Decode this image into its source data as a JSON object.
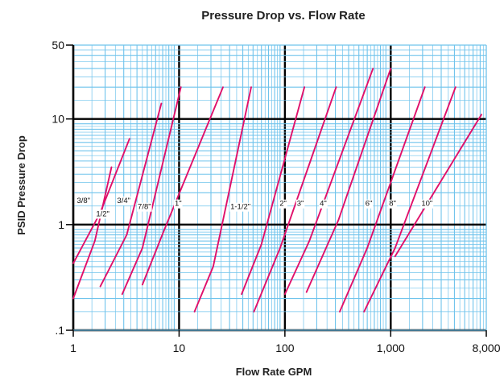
{
  "chart_data": {
    "type": "line",
    "title": "Pressure Drop vs. Flow Rate",
    "xlabel": "Flow Rate GPM",
    "ylabel": "PSID Pressure Drop",
    "x_scale": "log",
    "y_scale": "log",
    "xlim": [
      1,
      8000
    ],
    "ylim": [
      0.1,
      50
    ],
    "x_ticks": [
      {
        "value": 1,
        "label": "1"
      },
      {
        "value": 10,
        "label": "10"
      },
      {
        "value": 100,
        "label": "100"
      },
      {
        "value": 1000,
        "label": "1,000"
      },
      {
        "value": 8000,
        "label": "8,000"
      }
    ],
    "y_ticks": [
      {
        "value": 0.1,
        "label": ".1"
      },
      {
        "value": 1,
        "label": "1"
      },
      {
        "value": 10,
        "label": "10"
      },
      {
        "value": 50,
        "label": "50"
      }
    ],
    "grid": true,
    "colors": {
      "grid_minor": "#6fc3ec",
      "grid_major": "#000000",
      "series": "#e0106a"
    },
    "series": [
      {
        "name": "3/8\"",
        "x": [
          1,
          1.6,
          2.3
        ],
        "y": [
          0.2,
          0.7,
          3.5
        ],
        "label_at": [
          1.25,
          1.6
        ]
      },
      {
        "name": "1/2\"",
        "x": [
          1,
          1.8,
          3.4
        ],
        "y": [
          0.43,
          1.3,
          6.5
        ]
      },
      {
        "name": "3/4\"",
        "x": [
          1.8,
          3.2,
          6.8
        ],
        "y": [
          0.26,
          0.8,
          14
        ],
        "label_at": [
          3.0,
          1.6
        ]
      },
      {
        "name": "7/8\"",
        "x": [
          2.9,
          4.5,
          10.4
        ],
        "y": [
          0.22,
          0.6,
          20
        ],
        "label_at": [
          4.7,
          1.4
        ]
      },
      {
        "name": "1\"",
        "x": [
          4.5,
          7.1,
          26
        ],
        "y": [
          0.27,
          0.85,
          20
        ],
        "label_at": [
          9.8,
          1.5
        ]
      },
      {
        "name": "1-1/2\"",
        "x": [
          14,
          21,
          48
        ],
        "y": [
          0.15,
          0.4,
          20
        ],
        "label_at": [
          38,
          1.4
        ]
      },
      {
        "name": "2\"",
        "x": [
          39,
          60,
          153
        ],
        "y": [
          0.22,
          0.65,
          20
        ],
        "label_at": [
          96,
          1.5
        ]
      },
      {
        "name": "3\"",
        "x": [
          51,
          90,
          305
        ],
        "y": [
          0.15,
          0.6,
          20
        ],
        "label_at": [
          140,
          1.5
        ]
      },
      {
        "name": "4\"",
        "x": [
          100,
          170,
          680
        ],
        "y": [
          0.22,
          0.7,
          30
        ],
        "label_at": [
          230,
          1.5
        ]
      },
      {
        "name": "6\"",
        "x": [
          160,
          320,
          1000
        ],
        "y": [
          0.23,
          1.1,
          30
        ],
        "label_at": [
          620,
          1.5
        ]
      },
      {
        "name": "8\"",
        "x": [
          330,
          600,
          2100
        ],
        "y": [
          0.15,
          0.6,
          20
        ],
        "label_at": [
          1040,
          1.5
        ]
      },
      {
        "name": "10\"",
        "x": [
          560,
          1100,
          4100
        ],
        "y": [
          0.15,
          0.6,
          20
        ],
        "label_at": [
          2200,
          1.5
        ]
      },
      {
        "name": "",
        "x": [
          1100,
          7200
        ],
        "y": [
          0.5,
          11
        ]
      }
    ],
    "extra_labels": [
      {
        "text": "1/2\"",
        "x": 1.9,
        "y": 1.2
      }
    ]
  }
}
